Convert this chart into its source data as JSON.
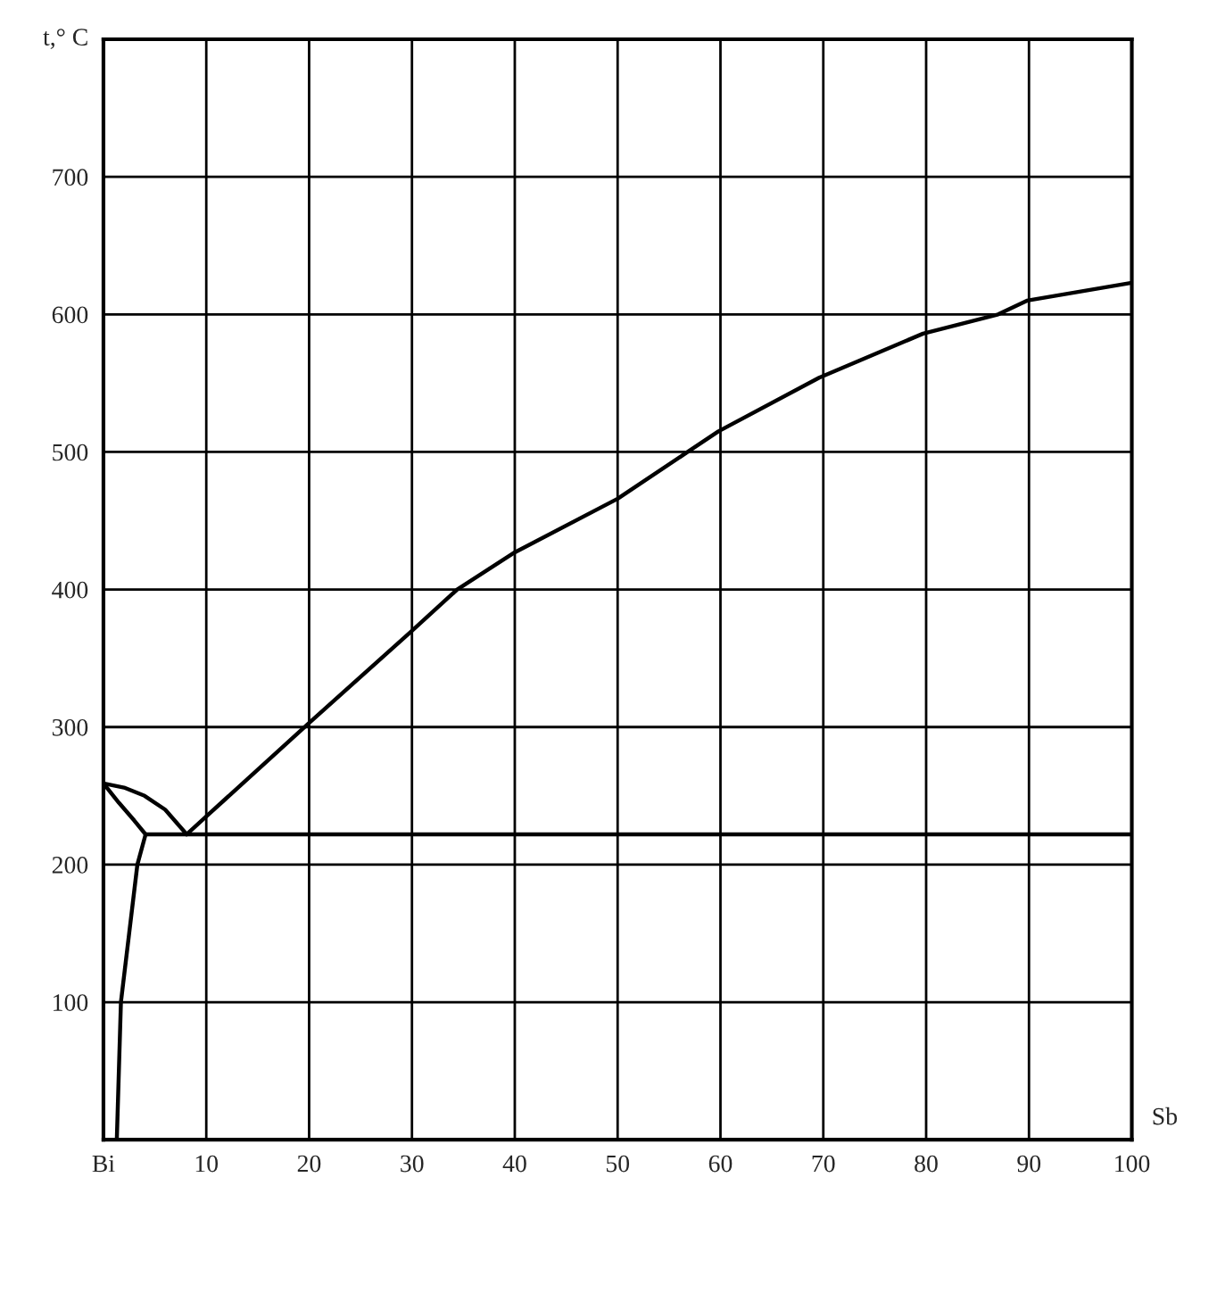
{
  "chart_data": {
    "type": "line",
    "xlabel": "Sb",
    "ylabel": "t,° C",
    "xlim": [
      0,
      100
    ],
    "ylim": [
      0,
      800
    ],
    "xticks": [
      {
        "value": 0,
        "label": "Bi"
      },
      10,
      20,
      30,
      40,
      50,
      60,
      70,
      80,
      90,
      100
    ],
    "yticks": [
      {
        "value": 0,
        "label": null
      },
      100,
      200,
      300,
      400,
      500,
      600,
      700,
      {
        "value": 800,
        "label": null
      }
    ],
    "grid": true,
    "marker": "none",
    "line_style": "solid",
    "series": [
      {
        "color": "#000000",
        "x": [
          8.1,
          10,
          20,
          30,
          34.4,
          40,
          50,
          59.8,
          69.6,
          79.7,
          87,
          89.8,
          100
        ],
        "values": [
          222,
          235,
          303,
          370,
          400,
          427,
          466,
          515,
          554,
          586,
          600,
          610,
          623
        ]
      },
      {
        "color": "#000000",
        "x": [
          0,
          2,
          4,
          6,
          8.1
        ],
        "values": [
          259,
          256,
          250,
          240,
          222
        ]
      },
      {
        "color": "#000000",
        "x": [
          0,
          1.5,
          3,
          4.1
        ],
        "values": [
          259,
          245,
          232,
          222
        ]
      },
      {
        "color": "#000000",
        "x": [
          4.1,
          3.3,
          2.5,
          1.7,
          1.3
        ],
        "values": [
          222,
          200,
          150,
          100,
          0
        ]
      },
      {
        "color": "#000000",
        "x": [
          4.1,
          100
        ],
        "values": [
          222,
          222
        ]
      }
    ]
  }
}
